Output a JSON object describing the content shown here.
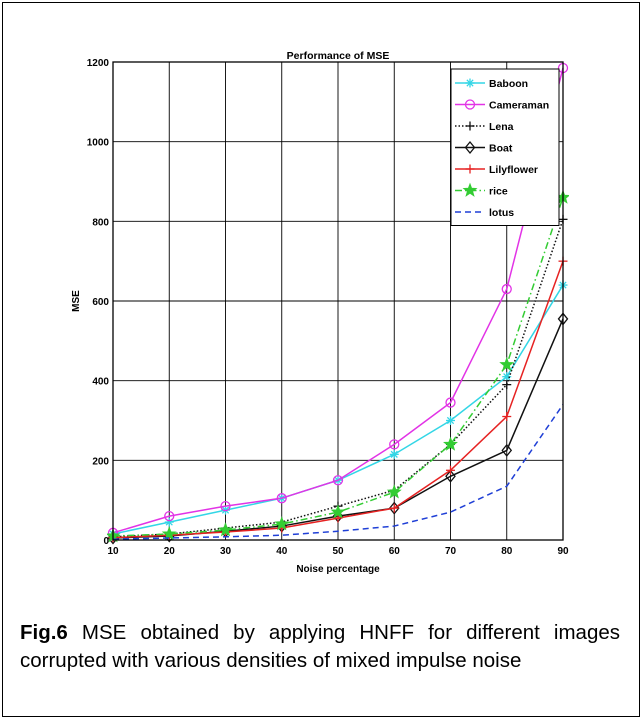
{
  "chart_data": {
    "type": "line",
    "title": "Performance of MSE",
    "xlabel": "Noise percentage",
    "ylabel": "MSE",
    "xlim": [
      10,
      90
    ],
    "ylim": [
      0,
      1200
    ],
    "x": [
      10,
      20,
      30,
      40,
      50,
      60,
      70,
      80,
      90
    ],
    "xticks": [
      10,
      20,
      30,
      40,
      50,
      60,
      70,
      80,
      90
    ],
    "yticks": [
      0,
      200,
      400,
      600,
      800,
      1000,
      1200
    ],
    "grid": true,
    "legend_position": "top-right",
    "series": [
      {
        "name": "Baboon",
        "color": "#33d6e6",
        "marker": "asterisk",
        "dash": "solid",
        "values": [
          15,
          45,
          75,
          105,
          150,
          215,
          300,
          410,
          640
        ]
      },
      {
        "name": "Cameraman",
        "color": "#e233e6",
        "marker": "circle",
        "dash": "solid",
        "values": [
          18,
          60,
          85,
          105,
          150,
          240,
          345,
          630,
          1185
        ]
      },
      {
        "name": "Lena",
        "color": "#111111",
        "marker": "plus",
        "dash": "dotted",
        "values": [
          8,
          15,
          30,
          45,
          85,
          125,
          240,
          390,
          805
        ]
      },
      {
        "name": "Boat",
        "color": "#111111",
        "marker": "diamond",
        "dash": "solid",
        "values": [
          5,
          10,
          22,
          35,
          60,
          80,
          160,
          225,
          555
        ]
      },
      {
        "name": "Lilyflower",
        "color": "#e62222",
        "marker": "plus",
        "dash": "solid",
        "values": [
          6,
          12,
          20,
          30,
          55,
          80,
          175,
          310,
          700
        ]
      },
      {
        "name": "rice",
        "color": "#33cc33",
        "marker": "star",
        "dash": "dashdot",
        "values": [
          10,
          15,
          25,
          40,
          70,
          120,
          240,
          440,
          860
        ]
      },
      {
        "name": "lotus",
        "color": "#1f3fd6",
        "marker": "none",
        "dash": "dashed",
        "values": [
          2,
          5,
          8,
          12,
          22,
          35,
          70,
          135,
          340
        ]
      }
    ]
  },
  "caption": {
    "label": "Fig.6",
    "text": " MSE obtained by applying HNFF for different images corrupted with various densities of mixed impulse noise"
  }
}
